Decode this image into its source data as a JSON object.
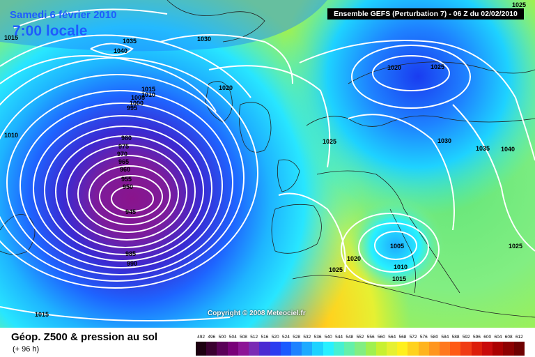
{
  "header": {
    "date": "Samedi 6 février 2010",
    "time": "7:00 locale",
    "run_info": "Ensemble GEFS (Perturbation 7) - 06 Z du 02/02/2010"
  },
  "copyright": "Copyright © 2008 Meteociel.fr",
  "footer": {
    "title": "Géop. Z500 & pression au sol",
    "subtitle": "(+ 96 h)"
  },
  "legend": {
    "values": [
      "492",
      "496",
      "500",
      "504",
      "508",
      "512",
      "516",
      "520",
      "524",
      "528",
      "532",
      "536",
      "540",
      "544",
      "548",
      "552",
      "556",
      "560",
      "564",
      "568",
      "572",
      "576",
      "580",
      "584",
      "588",
      "592",
      "596",
      "600",
      "604",
      "608",
      "612"
    ],
    "colors": [
      "#1c0010",
      "#3a0030",
      "#5a0058",
      "#780078",
      "#8c1496",
      "#7a2ab4",
      "#4a2ad2",
      "#2a3cf0",
      "#1a5aff",
      "#1e82ff",
      "#1eaaff",
      "#1ed2ff",
      "#28f0ff",
      "#46f0d2",
      "#64f0aa",
      "#82ee82",
      "#a0f050",
      "#c8f032",
      "#e6f032",
      "#fff01e",
      "#ffd21e",
      "#ffb41e",
      "#ff961e",
      "#ff781e",
      "#ff5a14",
      "#f03c14",
      "#dc1e0a",
      "#c80a0a",
      "#aa0000",
      "#8c0000",
      "#6e0000"
    ]
  },
  "isobars": {
    "labels": [
      "1015",
      "1010",
      "1035",
      "1040",
      "1030",
      "1015",
      "1010",
      "1005",
      "1000",
      "995",
      "1020",
      "980",
      "975",
      "970",
      "965",
      "960",
      "955",
      "950",
      "945",
      "985",
      "990",
      "1020",
      "1025",
      "1025",
      "1030",
      "1035",
      "1040",
      "1005",
      "1010",
      "1015",
      "1020",
      "1025",
      "1025",
      "1015",
      "1025"
    ]
  }
}
